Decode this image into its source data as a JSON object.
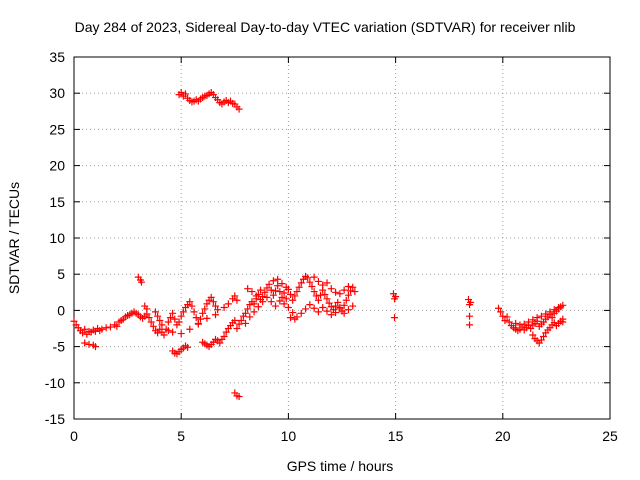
{
  "chart_data": {
    "type": "scatter",
    "title": "Day 284 of 2023, Sidereal Day-to-day VTEC variation (SDTVAR) for receiver nlib",
    "xlabel": "GPS time / hours",
    "ylabel": "SDTVAR / TECUs",
    "xlim": [
      0,
      25
    ],
    "ylim": [
      -15,
      35
    ],
    "xticks": [
      "0",
      "5",
      "10",
      "15",
      "20",
      "25"
    ],
    "yticks": [
      "-15",
      "-10",
      "-5",
      "0",
      "5",
      "10",
      "15",
      "20",
      "25",
      "30",
      "35"
    ],
    "grid": true,
    "marker": "+",
    "color": "#ff0000",
    "series": [
      {
        "name": "SDTVAR",
        "points": [
          [
            0.0,
            -1.5
          ],
          [
            0.1,
            -2.0
          ],
          [
            0.2,
            -2.4
          ],
          [
            0.3,
            -2.8
          ],
          [
            0.4,
            -3.1
          ],
          [
            0.5,
            -2.6
          ],
          [
            0.6,
            -3.3
          ],
          [
            0.7,
            -2.9
          ],
          [
            0.8,
            -3.0
          ],
          [
            0.9,
            -2.7
          ],
          [
            1.0,
            -2.9
          ],
          [
            1.1,
            -2.5
          ],
          [
            1.2,
            -2.8
          ],
          [
            0.5,
            -4.5
          ],
          [
            0.7,
            -4.7
          ],
          [
            0.9,
            -4.8
          ],
          [
            1.0,
            -5.0
          ],
          [
            1.3,
            -2.6
          ],
          [
            1.5,
            -2.4
          ],
          [
            1.7,
            -2.3
          ],
          [
            1.9,
            -2.0
          ],
          [
            2.0,
            -2.2
          ],
          [
            2.1,
            -1.6
          ],
          [
            2.2,
            -1.4
          ],
          [
            2.3,
            -1.2
          ],
          [
            2.4,
            -0.9
          ],
          [
            2.5,
            -0.7
          ],
          [
            2.6,
            -0.6
          ],
          [
            2.7,
            -0.4
          ],
          [
            2.8,
            -0.2
          ],
          [
            2.9,
            -0.4
          ],
          [
            3.0,
            -0.6
          ],
          [
            3.1,
            -0.9
          ],
          [
            3.2,
            -1.1
          ],
          [
            3.3,
            -0.8
          ],
          [
            3.4,
            -0.5
          ],
          [
            3.0,
            4.6
          ],
          [
            3.1,
            4.2
          ],
          [
            3.15,
            3.9
          ],
          [
            3.3,
            0.6
          ],
          [
            3.4,
            0.2
          ],
          [
            3.5,
            -1.0
          ],
          [
            3.6,
            -1.6
          ],
          [
            3.7,
            -2.2
          ],
          [
            3.8,
            -2.8
          ],
          [
            3.9,
            -3.1
          ],
          [
            3.8,
            -0.2
          ],
          [
            3.9,
            -0.8
          ],
          [
            4.0,
            -1.4
          ],
          [
            4.1,
            -2.0
          ],
          [
            4.0,
            -2.6
          ],
          [
            4.1,
            -3.0
          ],
          [
            4.2,
            -3.4
          ],
          [
            4.3,
            -2.6
          ],
          [
            4.4,
            -1.6
          ],
          [
            4.5,
            -1.0
          ],
          [
            4.6,
            -0.4
          ],
          [
            4.7,
            -1.2
          ],
          [
            4.8,
            -2.0
          ],
          [
            4.9,
            -1.6
          ],
          [
            5.0,
            -0.8
          ],
          [
            5.1,
            -0.2
          ],
          [
            5.2,
            0.4
          ],
          [
            5.3,
            0.8
          ],
          [
            5.4,
            1.2
          ],
          [
            5.5,
            0.6
          ],
          [
            5.6,
            -0.2
          ],
          [
            5.7,
            -1.0
          ],
          [
            5.8,
            -1.8
          ],
          [
            5.9,
            -1.2
          ],
          [
            6.0,
            -0.4
          ],
          [
            6.1,
            0.2
          ],
          [
            6.2,
            0.9
          ],
          [
            6.3,
            1.4
          ],
          [
            6.4,
            1.8
          ],
          [
            6.5,
            1.2
          ],
          [
            6.6,
            0.6
          ],
          [
            6.7,
            0.1
          ],
          [
            4.6,
            -5.6
          ],
          [
            4.7,
            -5.9
          ],
          [
            4.8,
            -6.0
          ],
          [
            4.9,
            -5.7
          ],
          [
            5.0,
            -5.4
          ],
          [
            5.1,
            -5.2
          ],
          [
            5.2,
            -4.9
          ],
          [
            5.3,
            -5.1
          ],
          [
            4.4,
            -2.8
          ],
          [
            4.6,
            -3.0
          ],
          [
            5.0,
            -3.2
          ],
          [
            5.4,
            -2.6
          ],
          [
            5.8,
            -1.9
          ],
          [
            6.2,
            -1.1
          ],
          [
            6.6,
            -0.6
          ],
          [
            7.0,
            0.4
          ],
          [
            7.2,
            0.9
          ],
          [
            7.4,
            1.6
          ],
          [
            7.5,
            2.0
          ],
          [
            7.6,
            1.4
          ],
          [
            6.0,
            -4.4
          ],
          [
            6.1,
            -4.6
          ],
          [
            6.2,
            -4.8
          ],
          [
            6.3,
            -5.0
          ],
          [
            6.4,
            -4.7
          ],
          [
            6.5,
            -4.4
          ],
          [
            6.6,
            -4.0
          ],
          [
            6.7,
            -4.2
          ],
          [
            6.8,
            -4.5
          ],
          [
            6.9,
            -4.0
          ],
          [
            7.0,
            -3.6
          ],
          [
            7.1,
            -3.0
          ],
          [
            7.2,
            -2.5
          ],
          [
            7.3,
            -2.1
          ],
          [
            7.4,
            -1.7
          ],
          [
            7.5,
            -1.4
          ],
          [
            4.9,
            29.8
          ],
          [
            5.0,
            30.1
          ],
          [
            5.1,
            29.6
          ],
          [
            5.2,
            29.9
          ],
          [
            5.3,
            29.3
          ],
          [
            5.4,
            29.0
          ],
          [
            5.5,
            28.8
          ],
          [
            5.6,
            28.9
          ],
          [
            5.7,
            29.1
          ],
          [
            5.8,
            28.9
          ],
          [
            5.9,
            29.2
          ],
          [
            6.0,
            29.4
          ],
          [
            6.1,
            29.6
          ],
          [
            6.2,
            29.7
          ],
          [
            6.3,
            29.9
          ],
          [
            6.4,
            30.1
          ],
          [
            6.5,
            29.8
          ],
          [
            6.6,
            29.4
          ],
          [
            6.7,
            29.1
          ],
          [
            6.8,
            28.7
          ],
          [
            6.9,
            28.5
          ],
          [
            7.0,
            28.8
          ],
          [
            7.1,
            29.0
          ],
          [
            7.2,
            28.7
          ],
          [
            7.3,
            28.9
          ],
          [
            7.4,
            28.6
          ],
          [
            7.5,
            28.5
          ],
          [
            7.6,
            28.1
          ],
          [
            7.7,
            27.8
          ],
          [
            7.5,
            -11.4
          ],
          [
            7.6,
            -11.8
          ],
          [
            7.7,
            -11.9
          ],
          [
            7.6,
            -2.5
          ],
          [
            7.7,
            -1.9
          ],
          [
            7.8,
            -1.4
          ],
          [
            7.9,
            -0.8
          ],
          [
            8.0,
            -0.4
          ],
          [
            8.1,
            0.2
          ],
          [
            8.2,
            0.8
          ],
          [
            8.3,
            1.2
          ],
          [
            8.4,
            0.9
          ],
          [
            8.5,
            1.6
          ],
          [
            8.6,
            2.2
          ],
          [
            8.7,
            2.8
          ],
          [
            8.8,
            1.9
          ],
          [
            8.9,
            2.5
          ],
          [
            9.0,
            3.1
          ],
          [
            9.1,
            3.6
          ],
          [
            9.2,
            2.8
          ],
          [
            9.3,
            2.1
          ],
          [
            9.4,
            2.7
          ],
          [
            9.5,
            3.4
          ],
          [
            9.6,
            2.6
          ],
          [
            9.7,
            1.8
          ],
          [
            9.8,
            2.4
          ],
          [
            9.9,
            1.6
          ],
          [
            10.0,
            2.9
          ],
          [
            10.1,
            2.2
          ],
          [
            10.2,
            1.4
          ],
          [
            10.3,
            2.0
          ],
          [
            10.4,
            2.6
          ],
          [
            10.5,
            3.2
          ],
          [
            10.6,
            3.8
          ],
          [
            10.7,
            4.3
          ],
          [
            10.8,
            4.7
          ],
          [
            10.9,
            4.5
          ],
          [
            11.0,
            3.9
          ],
          [
            11.1,
            3.3
          ],
          [
            11.2,
            2.6
          ],
          [
            11.3,
            2.0
          ],
          [
            11.4,
            1.4
          ],
          [
            11.5,
            2.1
          ],
          [
            11.6,
            2.8
          ],
          [
            11.7,
            2.2
          ],
          [
            11.8,
            1.6
          ],
          [
            11.9,
            1.0
          ],
          [
            12.0,
            0.5
          ],
          [
            12.1,
            0.1
          ],
          [
            12.2,
            0.6
          ],
          [
            12.3,
            1.1
          ],
          [
            12.4,
            0.4
          ],
          [
            12.5,
            -0.1
          ],
          [
            12.6,
            0.7
          ],
          [
            12.7,
            1.4
          ],
          [
            12.8,
            2.1
          ],
          [
            12.9,
            2.7
          ],
          [
            13.0,
            3.2
          ],
          [
            13.1,
            2.6
          ],
          [
            8.0,
            -1.8
          ],
          [
            8.2,
            -0.9
          ],
          [
            8.4,
            -0.2
          ],
          [
            8.6,
            0.5
          ],
          [
            8.8,
            1.2
          ],
          [
            9.0,
            1.8
          ],
          [
            9.2,
            1.2
          ],
          [
            9.4,
            0.6
          ],
          [
            9.6,
            1.3
          ],
          [
            9.8,
            0.9
          ],
          [
            10.0,
            0.4
          ],
          [
            10.2,
            -0.3
          ],
          [
            10.4,
            -0.9
          ],
          [
            10.6,
            -0.4
          ],
          [
            10.8,
            0.2
          ],
          [
            11.0,
            0.8
          ],
          [
            11.2,
            0.3
          ],
          [
            11.4,
            -0.2
          ],
          [
            11.6,
            0.4
          ],
          [
            11.8,
            -0.1
          ],
          [
            12.0,
            -0.6
          ],
          [
            12.2,
            -0.3
          ],
          [
            12.4,
            0.2
          ],
          [
            12.6,
            -0.4
          ],
          [
            12.8,
            0.1
          ],
          [
            13.0,
            0.6
          ],
          [
            8.1,
            3.0
          ],
          [
            8.3,
            2.6
          ],
          [
            8.5,
            2.0
          ],
          [
            8.7,
            1.5
          ],
          [
            9.3,
            4.1
          ],
          [
            9.5,
            4.3
          ],
          [
            9.7,
            3.7
          ],
          [
            9.9,
            3.2
          ],
          [
            10.1,
            -1.0
          ],
          [
            10.3,
            -1.2
          ],
          [
            11.2,
            4.6
          ],
          [
            11.4,
            4.0
          ],
          [
            11.6,
            3.5
          ],
          [
            11.8,
            3.8
          ],
          [
            12.0,
            3.0
          ],
          [
            12.2,
            2.5
          ],
          [
            12.4,
            2.3
          ],
          [
            12.6,
            2.8
          ],
          [
            12.8,
            3.3
          ],
          [
            14.9,
            2.3
          ],
          [
            15.0,
            1.9
          ],
          [
            14.95,
            1.6
          ],
          [
            14.95,
            -1.0
          ],
          [
            18.4,
            1.5
          ],
          [
            18.5,
            1.1
          ],
          [
            18.45,
            0.8
          ],
          [
            18.45,
            -0.8
          ],
          [
            18.45,
            -2.0
          ],
          [
            19.8,
            0.3
          ],
          [
            19.9,
            -0.2
          ],
          [
            20.0,
            -0.8
          ],
          [
            20.1,
            -1.4
          ],
          [
            20.2,
            -0.9
          ],
          [
            20.3,
            -1.6
          ],
          [
            20.4,
            -2.1
          ],
          [
            20.5,
            -2.4
          ],
          [
            20.6,
            -2.6
          ],
          [
            20.7,
            -2.8
          ],
          [
            20.8,
            -2.6
          ],
          [
            20.9,
            -2.3
          ],
          [
            21.0,
            -2.7
          ],
          [
            21.1,
            -2.4
          ],
          [
            21.2,
            -2.1
          ],
          [
            21.3,
            -2.5
          ],
          [
            21.4,
            -2.0
          ],
          [
            21.5,
            -1.8
          ],
          [
            21.6,
            -1.5
          ],
          [
            21.7,
            -2.2
          ],
          [
            21.8,
            -1.9
          ],
          [
            21.9,
            -1.6
          ],
          [
            22.0,
            -1.2
          ],
          [
            22.1,
            -0.9
          ],
          [
            22.2,
            -0.6
          ],
          [
            22.3,
            -1.0
          ],
          [
            22.4,
            -0.4
          ],
          [
            22.5,
            -0.1
          ],
          [
            22.6,
            0.2
          ],
          [
            22.7,
            0.5
          ],
          [
            22.8,
            0.7
          ],
          [
            21.4,
            -3.4
          ],
          [
            21.5,
            -3.9
          ],
          [
            21.6,
            -4.2
          ],
          [
            21.7,
            -4.5
          ],
          [
            21.8,
            -4.1
          ],
          [
            21.9,
            -3.6
          ],
          [
            22.0,
            -3.1
          ],
          [
            22.1,
            -2.7
          ],
          [
            22.2,
            -2.4
          ],
          [
            22.3,
            -2.0
          ],
          [
            22.4,
            -1.7
          ],
          [
            22.5,
            -2.1
          ],
          [
            22.6,
            -1.8
          ],
          [
            22.7,
            -1.5
          ],
          [
            22.8,
            -1.2
          ],
          [
            20.6,
            -1.8
          ],
          [
            20.8,
            -2.0
          ],
          [
            21.0,
            -1.9
          ],
          [
            21.2,
            -1.6
          ],
          [
            21.4,
            -1.3
          ],
          [
            21.6,
            -1.0
          ],
          [
            21.8,
            -0.8
          ],
          [
            22.0,
            -0.5
          ],
          [
            22.2,
            -0.2
          ],
          [
            22.4,
            0.1
          ],
          [
            22.6,
            0.4
          ],
          [
            22.8,
            -1.6
          ]
        ]
      }
    ]
  }
}
